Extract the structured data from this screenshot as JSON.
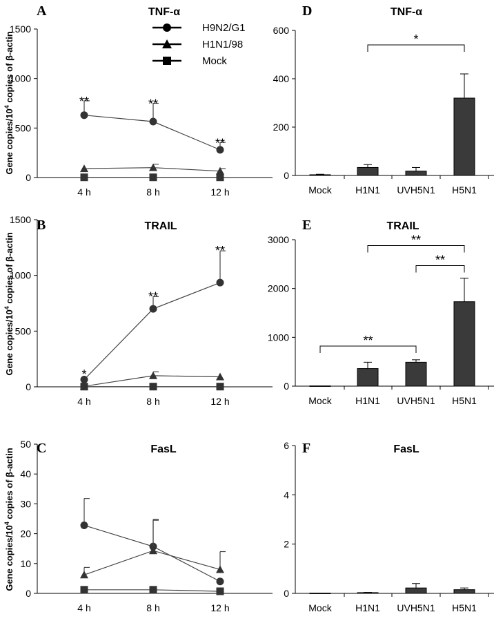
{
  "ylabel": "Gene copies/10",
  "ylabel_sup": "4",
  "ylabel_tail": " copies of β-actin",
  "legend": [
    {
      "name": "H9N2/G1",
      "marker": "circle"
    },
    {
      "name": "H1N1/98",
      "marker": "triangle"
    },
    {
      "name": "Mock",
      "marker": "square"
    }
  ],
  "chart_data": [
    {
      "id": "A",
      "letter": "A",
      "type": "line",
      "title": "TNF-α",
      "categories": [
        "4 h",
        "8 h",
        "12 h"
      ],
      "ylim": [
        0,
        1500
      ],
      "yticks": [
        0,
        500,
        1000,
        1500
      ],
      "series": [
        {
          "name": "H9N2/G1",
          "marker": "circle",
          "values": [
            630,
            565,
            280
          ],
          "err": [
            145,
            185,
            75
          ]
        },
        {
          "name": "H1N1/98",
          "marker": "triangle",
          "values": [
            90,
            100,
            65
          ],
          "err": [
            0,
            35,
            25
          ]
        },
        {
          "name": "Mock",
          "marker": "square",
          "values": [
            2,
            2,
            2
          ],
          "err": [
            0,
            0,
            0
          ]
        }
      ],
      "annotations": [
        {
          "text": "**",
          "x": 0,
          "y": 795
        },
        {
          "text": "**",
          "x": 1,
          "y": 770
        },
        {
          "text": "**",
          "x": 2,
          "y": 375
        }
      ],
      "grid": false
    },
    {
      "id": "B",
      "letter": "B",
      "type": "line",
      "title": "TRAIL",
      "categories": [
        "4 h",
        "8 h",
        "12 h"
      ],
      "ylim": [
        0,
        1500
      ],
      "yticks": [
        0,
        500,
        1000,
        1500
      ],
      "series": [
        {
          "name": "H9N2/G1",
          "marker": "circle",
          "values": [
            65,
            700,
            935
          ],
          "err": [
            0,
            110,
            285
          ]
        },
        {
          "name": "H1N1/98",
          "marker": "triangle",
          "values": [
            5,
            100,
            90
          ],
          "err": [
            0,
            35,
            0
          ]
        },
        {
          "name": "Mock",
          "marker": "square",
          "values": [
            2,
            2,
            2
          ],
          "err": [
            0,
            0,
            0
          ]
        }
      ],
      "annotations": [
        {
          "text": "*",
          "x": 0,
          "y": 135
        },
        {
          "text": "**",
          "x": 1,
          "y": 835
        },
        {
          "text": "**",
          "x": 2,
          "y": 1245
        }
      ],
      "grid": false
    },
    {
      "id": "C",
      "letter": "C",
      "type": "line",
      "title": "FasL",
      "categories": [
        "4 h",
        "8 h",
        "12 h"
      ],
      "ylim": [
        0,
        50
      ],
      "yticks": [
        0,
        10,
        20,
        30,
        40,
        50
      ],
      "series": [
        {
          "name": "H9N2/G1",
          "marker": "circle",
          "values": [
            22.8,
            15.7,
            4
          ],
          "err": [
            9,
            8.8,
            0
          ]
        },
        {
          "name": "H1N1/98",
          "marker": "triangle",
          "values": [
            6.2,
            14.3,
            8
          ],
          "err": [
            2.5,
            10.5,
            6
          ]
        },
        {
          "name": "Mock",
          "marker": "square",
          "values": [
            1.2,
            1.2,
            0.7
          ],
          "err": [
            0,
            0,
            0
          ]
        }
      ],
      "annotations": [],
      "grid": false
    },
    {
      "id": "D",
      "letter": "D",
      "type": "bar",
      "title": "TNF-α",
      "categories": [
        "Mock",
        "H1N1",
        "UVH5N1",
        "H5N1"
      ],
      "ylim": [
        0,
        600
      ],
      "yticks": [
        0,
        200,
        400,
        600
      ],
      "values": [
        3,
        33,
        18,
        320
      ],
      "err": [
        2,
        12,
        15,
        100
      ],
      "brackets": [
        {
          "from": 1,
          "to": 3,
          "y": 540,
          "text": "*"
        }
      ],
      "grid": false
    },
    {
      "id": "E",
      "letter": "E",
      "type": "bar",
      "title": "TRAIL",
      "categories": [
        "Mock",
        "H1N1",
        "UVH5N1",
        "H5N1"
      ],
      "ylim": [
        0,
        3000
      ],
      "yticks": [
        0,
        1000,
        2000,
        3000
      ],
      "values": [
        5,
        360,
        490,
        1730
      ],
      "err": [
        0,
        130,
        50,
        480
      ],
      "brackets": [
        {
          "from": 1,
          "to": 3,
          "y": 2880,
          "text": "**"
        },
        {
          "from": 2,
          "to": 3,
          "y": 2470,
          "text": "**"
        },
        {
          "from": 0,
          "to": 2,
          "y": 820,
          "text": "**"
        }
      ],
      "grid": false
    },
    {
      "id": "F",
      "letter": "F",
      "type": "bar",
      "title": "FasL",
      "categories": [
        "Mock",
        "H1N1",
        "UVH5N1",
        "H5N1"
      ],
      "ylim": [
        0,
        6
      ],
      "yticks": [
        0,
        2,
        4,
        6
      ],
      "values": [
        0.01,
        0.03,
        0.22,
        0.15
      ],
      "err": [
        0,
        0.01,
        0.18,
        0.07
      ],
      "brackets": [],
      "grid": false
    }
  ]
}
